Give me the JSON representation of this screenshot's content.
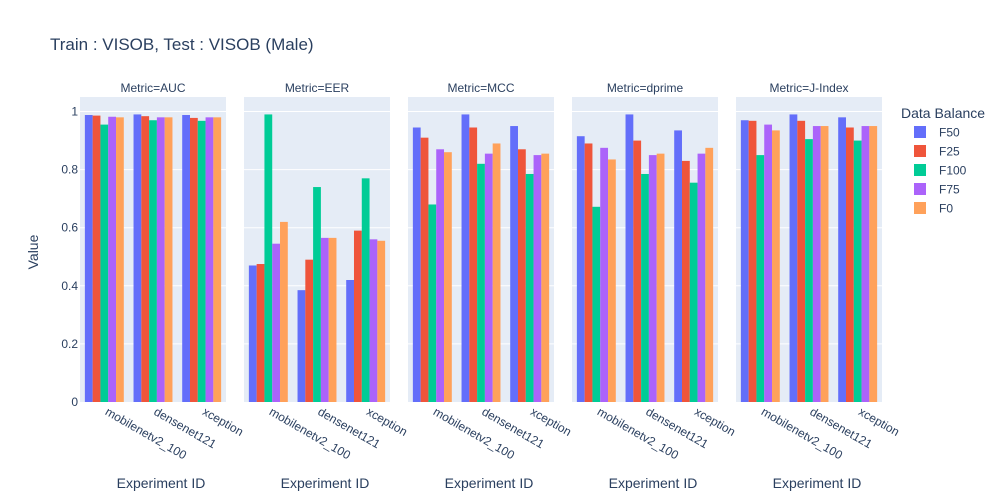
{
  "chart_data": {
    "type": "bar",
    "title": "Train : VISOB, Test : VISOB (Male)",
    "xlabel": "Experiment ID",
    "ylabel": "Value",
    "ylim": [
      0,
      1.05
    ],
    "yticks": [
      0,
      0.2,
      0.4,
      0.6,
      0.8,
      1
    ],
    "ytick_labels": [
      "0",
      "0.2",
      "0.4",
      "0.6",
      "0.8",
      "1"
    ],
    "categories": [
      "mobilenetv2_100",
      "densenet121",
      "xception"
    ],
    "legend": {
      "title": "Data Balance",
      "placement": "right"
    },
    "series_meta": [
      {
        "name": "F50",
        "color": "#636efa"
      },
      {
        "name": "F25",
        "color": "#ef553b"
      },
      {
        "name": "F100",
        "color": "#00cc96"
      },
      {
        "name": "F75",
        "color": "#ab63fa"
      },
      {
        "name": "F0",
        "color": "#ffa15a"
      }
    ],
    "facets": [
      {
        "title": "Metric=AUC",
        "series": [
          {
            "name": "F50",
            "values": [
              0.988,
              0.99,
              0.988
            ]
          },
          {
            "name": "F25",
            "values": [
              0.986,
              0.984,
              0.978
            ]
          },
          {
            "name": "F100",
            "values": [
              0.955,
              0.97,
              0.968
            ]
          },
          {
            "name": "F75",
            "values": [
              0.982,
              0.98,
              0.98
            ]
          },
          {
            "name": "F0",
            "values": [
              0.98,
              0.98,
              0.98
            ]
          }
        ]
      },
      {
        "title": "Metric=EER",
        "series": [
          {
            "name": "F50",
            "values": [
              0.47,
              0.385,
              0.42
            ]
          },
          {
            "name": "F25",
            "values": [
              0.475,
              0.49,
              0.59
            ]
          },
          {
            "name": "F100",
            "values": [
              0.99,
              0.74,
              0.77
            ]
          },
          {
            "name": "F75",
            "values": [
              0.545,
              0.565,
              0.56
            ]
          },
          {
            "name": "F0",
            "values": [
              0.62,
              0.565,
              0.555
            ]
          }
        ]
      },
      {
        "title": "Metric=MCC",
        "series": [
          {
            "name": "F50",
            "values": [
              0.945,
              0.99,
              0.95
            ]
          },
          {
            "name": "F25",
            "values": [
              0.91,
              0.945,
              0.87
            ]
          },
          {
            "name": "F100",
            "values": [
              0.68,
              0.82,
              0.785
            ]
          },
          {
            "name": "F75",
            "values": [
              0.87,
              0.855,
              0.85
            ]
          },
          {
            "name": "F0",
            "values": [
              0.86,
              0.89,
              0.855
            ]
          }
        ]
      },
      {
        "title": "Metric=dprime",
        "series": [
          {
            "name": "F50",
            "values": [
              0.915,
              0.99,
              0.935
            ]
          },
          {
            "name": "F25",
            "values": [
              0.89,
              0.9,
              0.83
            ]
          },
          {
            "name": "F100",
            "values": [
              0.672,
              0.785,
              0.755
            ]
          },
          {
            "name": "F75",
            "values": [
              0.875,
              0.85,
              0.855
            ]
          },
          {
            "name": "F0",
            "values": [
              0.835,
              0.855,
              0.875
            ]
          }
        ]
      },
      {
        "title": "Metric=J-Index",
        "series": [
          {
            "name": "F50",
            "values": [
              0.97,
              0.99,
              0.98
            ]
          },
          {
            "name": "F25",
            "values": [
              0.968,
              0.968,
              0.945
            ]
          },
          {
            "name": "F100",
            "values": [
              0.85,
              0.905,
              0.9
            ]
          },
          {
            "name": "F75",
            "values": [
              0.955,
              0.95,
              0.95
            ]
          },
          {
            "name": "F0",
            "values": [
              0.935,
              0.95,
              0.95
            ]
          }
        ]
      }
    ]
  }
}
